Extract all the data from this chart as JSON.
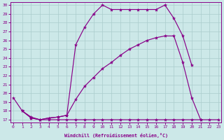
{
  "bg_color": "#cce8e8",
  "line_color": "#880088",
  "grid_color": "#aacccc",
  "xlabel": "Windchill (Refroidissement éolien,°C)",
  "xlim": [
    -0.3,
    23.3
  ],
  "ylim": [
    16.7,
    30.3
  ],
  "xticks": [
    0,
    1,
    2,
    3,
    4,
    5,
    6,
    7,
    8,
    9,
    10,
    11,
    12,
    13,
    14,
    15,
    16,
    17,
    18,
    19,
    20,
    21,
    22,
    23
  ],
  "yticks": [
    17,
    18,
    19,
    20,
    21,
    22,
    23,
    24,
    25,
    26,
    27,
    28,
    29,
    30
  ],
  "curve1_x": [
    0,
    1,
    2,
    3,
    4,
    5,
    6,
    7,
    8,
    9,
    10,
    11,
    12,
    13,
    14,
    15,
    16,
    17,
    18,
    19,
    20
  ],
  "curve1_y": [
    19.5,
    18.0,
    17.2,
    17.0,
    17.2,
    17.3,
    17.5,
    25.5,
    27.5,
    29.0,
    30.0,
    29.5,
    29.5,
    29.5,
    29.5,
    29.5,
    29.5,
    30.0,
    28.5,
    26.5,
    23.2
  ],
  "curve2_x": [
    1,
    2,
    3,
    4,
    5,
    6,
    7,
    8,
    9,
    10,
    11,
    12,
    13,
    14,
    15,
    16,
    17,
    18,
    19,
    20,
    21
  ],
  "curve2_y": [
    18.0,
    17.3,
    17.0,
    17.2,
    17.3,
    17.5,
    19.3,
    20.8,
    21.8,
    22.8,
    23.5,
    24.3,
    25.0,
    25.5,
    26.0,
    26.3,
    26.5,
    26.5,
    23.5,
    19.5,
    17.0
  ],
  "curve3_x": [
    1,
    2,
    3,
    4,
    5,
    6,
    7,
    8,
    9,
    10,
    11,
    12,
    13,
    14,
    15,
    16,
    17,
    18,
    19,
    20,
    21,
    22,
    23
  ],
  "curve3_y": [
    18.0,
    17.2,
    17.0,
    17.0,
    17.0,
    17.0,
    17.0,
    17.0,
    17.0,
    17.0,
    17.0,
    17.0,
    17.0,
    17.0,
    17.0,
    17.0,
    17.0,
    17.0,
    17.0,
    17.0,
    17.0,
    17.0,
    17.0
  ]
}
